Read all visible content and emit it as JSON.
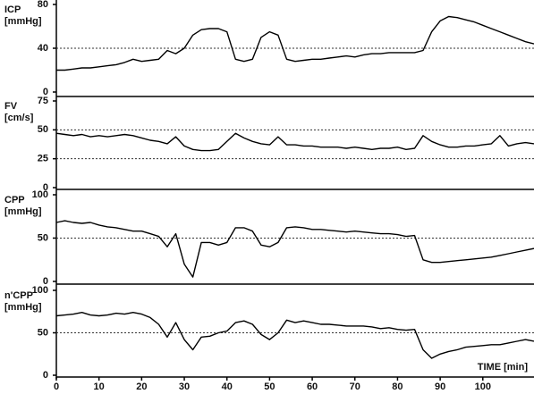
{
  "chart_data": [
    {
      "type": "line",
      "ylabel": [
        "ICP",
        "[mmHg]"
      ],
      "color": "#000000",
      "x": [
        0,
        2,
        4,
        6,
        8,
        10,
        12,
        14,
        16,
        18,
        20,
        22,
        24,
        26,
        28,
        30,
        32,
        34,
        36,
        38,
        40,
        42,
        44,
        46,
        48,
        50,
        52,
        54,
        56,
        58,
        60,
        62,
        64,
        66,
        68,
        70,
        72,
        74,
        76,
        78,
        80,
        82,
        84,
        86,
        88,
        90,
        92,
        94,
        96,
        98,
        100,
        102,
        104,
        106,
        108,
        110,
        112
      ],
      "values": [
        20,
        20,
        21,
        22,
        22,
        23,
        24,
        25,
        27,
        30,
        28,
        29,
        30,
        38,
        35,
        40,
        52,
        57,
        58,
        58,
        55,
        30,
        28,
        30,
        50,
        55,
        52,
        30,
        28,
        29,
        30,
        30,
        31,
        32,
        33,
        32,
        34,
        35,
        35,
        36,
        36,
        36,
        36,
        38,
        55,
        65,
        69,
        68,
        66,
        64,
        61,
        58,
        55,
        52,
        49,
        46,
        44
      ],
      "xlim": [
        0,
        112
      ],
      "ylim": [
        0,
        80
      ],
      "yticks": [
        0,
        40,
        80
      ],
      "reference_lines": [
        40
      ]
    },
    {
      "type": "line",
      "ylabel": [
        "FV",
        "[cm/s]"
      ],
      "color": "#000000",
      "x": [
        0,
        2,
        4,
        6,
        8,
        10,
        12,
        14,
        16,
        18,
        20,
        22,
        24,
        26,
        28,
        30,
        32,
        34,
        36,
        38,
        40,
        42,
        44,
        46,
        48,
        50,
        52,
        54,
        56,
        58,
        60,
        62,
        64,
        66,
        68,
        70,
        72,
        74,
        76,
        78,
        80,
        82,
        84,
        86,
        88,
        90,
        92,
        94,
        96,
        98,
        100,
        102,
        104,
        106,
        108,
        110,
        112
      ],
      "values": [
        47,
        46,
        45,
        46,
        44,
        45,
        44,
        45,
        46,
        45,
        43,
        41,
        40,
        38,
        44,
        36,
        33,
        32,
        32,
        33,
        40,
        47,
        43,
        40,
        38,
        37,
        44,
        37,
        37,
        36,
        36,
        35,
        35,
        35,
        34,
        35,
        34,
        33,
        34,
        34,
        35,
        33,
        34,
        45,
        40,
        37,
        35,
        35,
        36,
        36,
        37,
        38,
        45,
        36,
        38,
        39,
        38
      ],
      "xlim": [
        0,
        112
      ],
      "ylim": [
        0,
        75
      ],
      "yticks": [
        0,
        25,
        50,
        75
      ],
      "reference_lines": [
        25,
        50
      ]
    },
    {
      "type": "line",
      "ylabel": [
        "CPP",
        "[mmHg]"
      ],
      "color": "#000000",
      "x": [
        0,
        2,
        4,
        6,
        8,
        10,
        12,
        14,
        16,
        18,
        20,
        22,
        24,
        26,
        28,
        30,
        32,
        34,
        36,
        38,
        40,
        42,
        44,
        46,
        48,
        50,
        52,
        54,
        56,
        58,
        60,
        62,
        64,
        66,
        68,
        70,
        72,
        74,
        76,
        78,
        80,
        82,
        84,
        86,
        88,
        90,
        92,
        94,
        96,
        98,
        100,
        102,
        104,
        106,
        108,
        110,
        112
      ],
      "values": [
        68,
        70,
        68,
        67,
        68,
        65,
        63,
        62,
        60,
        58,
        58,
        55,
        52,
        40,
        55,
        20,
        5,
        45,
        45,
        42,
        45,
        62,
        62,
        58,
        42,
        40,
        45,
        62,
        63,
        62,
        60,
        60,
        59,
        58,
        57,
        58,
        57,
        56,
        55,
        55,
        54,
        52,
        53,
        25,
        22,
        22,
        23,
        24,
        25,
        26,
        27,
        28,
        30,
        32,
        34,
        36,
        38
      ],
      "xlim": [
        0,
        112
      ],
      "ylim": [
        0,
        100
      ],
      "yticks": [
        0,
        50,
        100
      ],
      "reference_lines": [
        50
      ]
    },
    {
      "type": "line",
      "ylabel": [
        "n'CPP",
        "[mmHg]"
      ],
      "color": "#000000",
      "x": [
        0,
        2,
        4,
        6,
        8,
        10,
        12,
        14,
        16,
        18,
        20,
        22,
        24,
        26,
        28,
        30,
        32,
        34,
        36,
        38,
        40,
        42,
        44,
        46,
        48,
        50,
        52,
        54,
        56,
        58,
        60,
        62,
        64,
        66,
        68,
        70,
        72,
        74,
        76,
        78,
        80,
        82,
        84,
        86,
        88,
        90,
        92,
        94,
        96,
        98,
        100,
        102,
        104,
        106,
        108,
        110,
        112
      ],
      "values": [
        70,
        71,
        72,
        74,
        71,
        70,
        71,
        73,
        72,
        74,
        72,
        68,
        60,
        45,
        62,
        42,
        30,
        45,
        46,
        50,
        52,
        62,
        64,
        60,
        48,
        42,
        50,
        65,
        62,
        64,
        62,
        60,
        60,
        59,
        58,
        58,
        58,
        57,
        55,
        56,
        54,
        53,
        54,
        30,
        20,
        25,
        28,
        30,
        33,
        34,
        35,
        36,
        36,
        38,
        40,
        42,
        40
      ],
      "xlim": [
        0,
        112
      ],
      "ylim": [
        0,
        100
      ],
      "yticks": [
        0,
        50,
        100
      ],
      "reference_lines": [
        50
      ],
      "xticks": [
        0,
        10,
        20,
        30,
        40,
        50,
        60,
        70,
        80,
        90,
        100
      ],
      "xlabel": "TIME [min]"
    }
  ]
}
